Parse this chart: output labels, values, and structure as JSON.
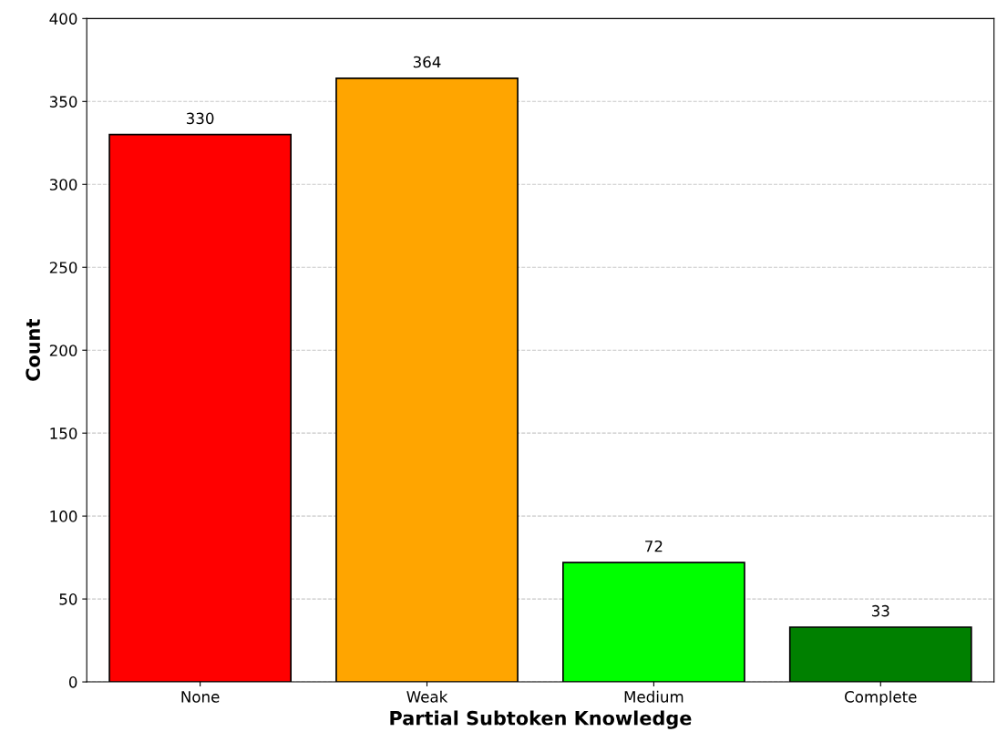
{
  "chart_data": {
    "type": "bar",
    "xlabel": "Partial Subtoken Knowledge",
    "ylabel": "Count",
    "categories": [
      "None",
      "Weak",
      "Medium",
      "Complete"
    ],
    "values": [
      330,
      364,
      72,
      33
    ],
    "colors": [
      "#ff0000",
      "#ffa500",
      "#00ff00",
      "#008000"
    ],
    "ylim": [
      0,
      400
    ],
    "yticks": [
      0,
      50,
      100,
      150,
      200,
      250,
      300,
      350,
      400
    ],
    "grid": "y",
    "data_labels": true
  }
}
